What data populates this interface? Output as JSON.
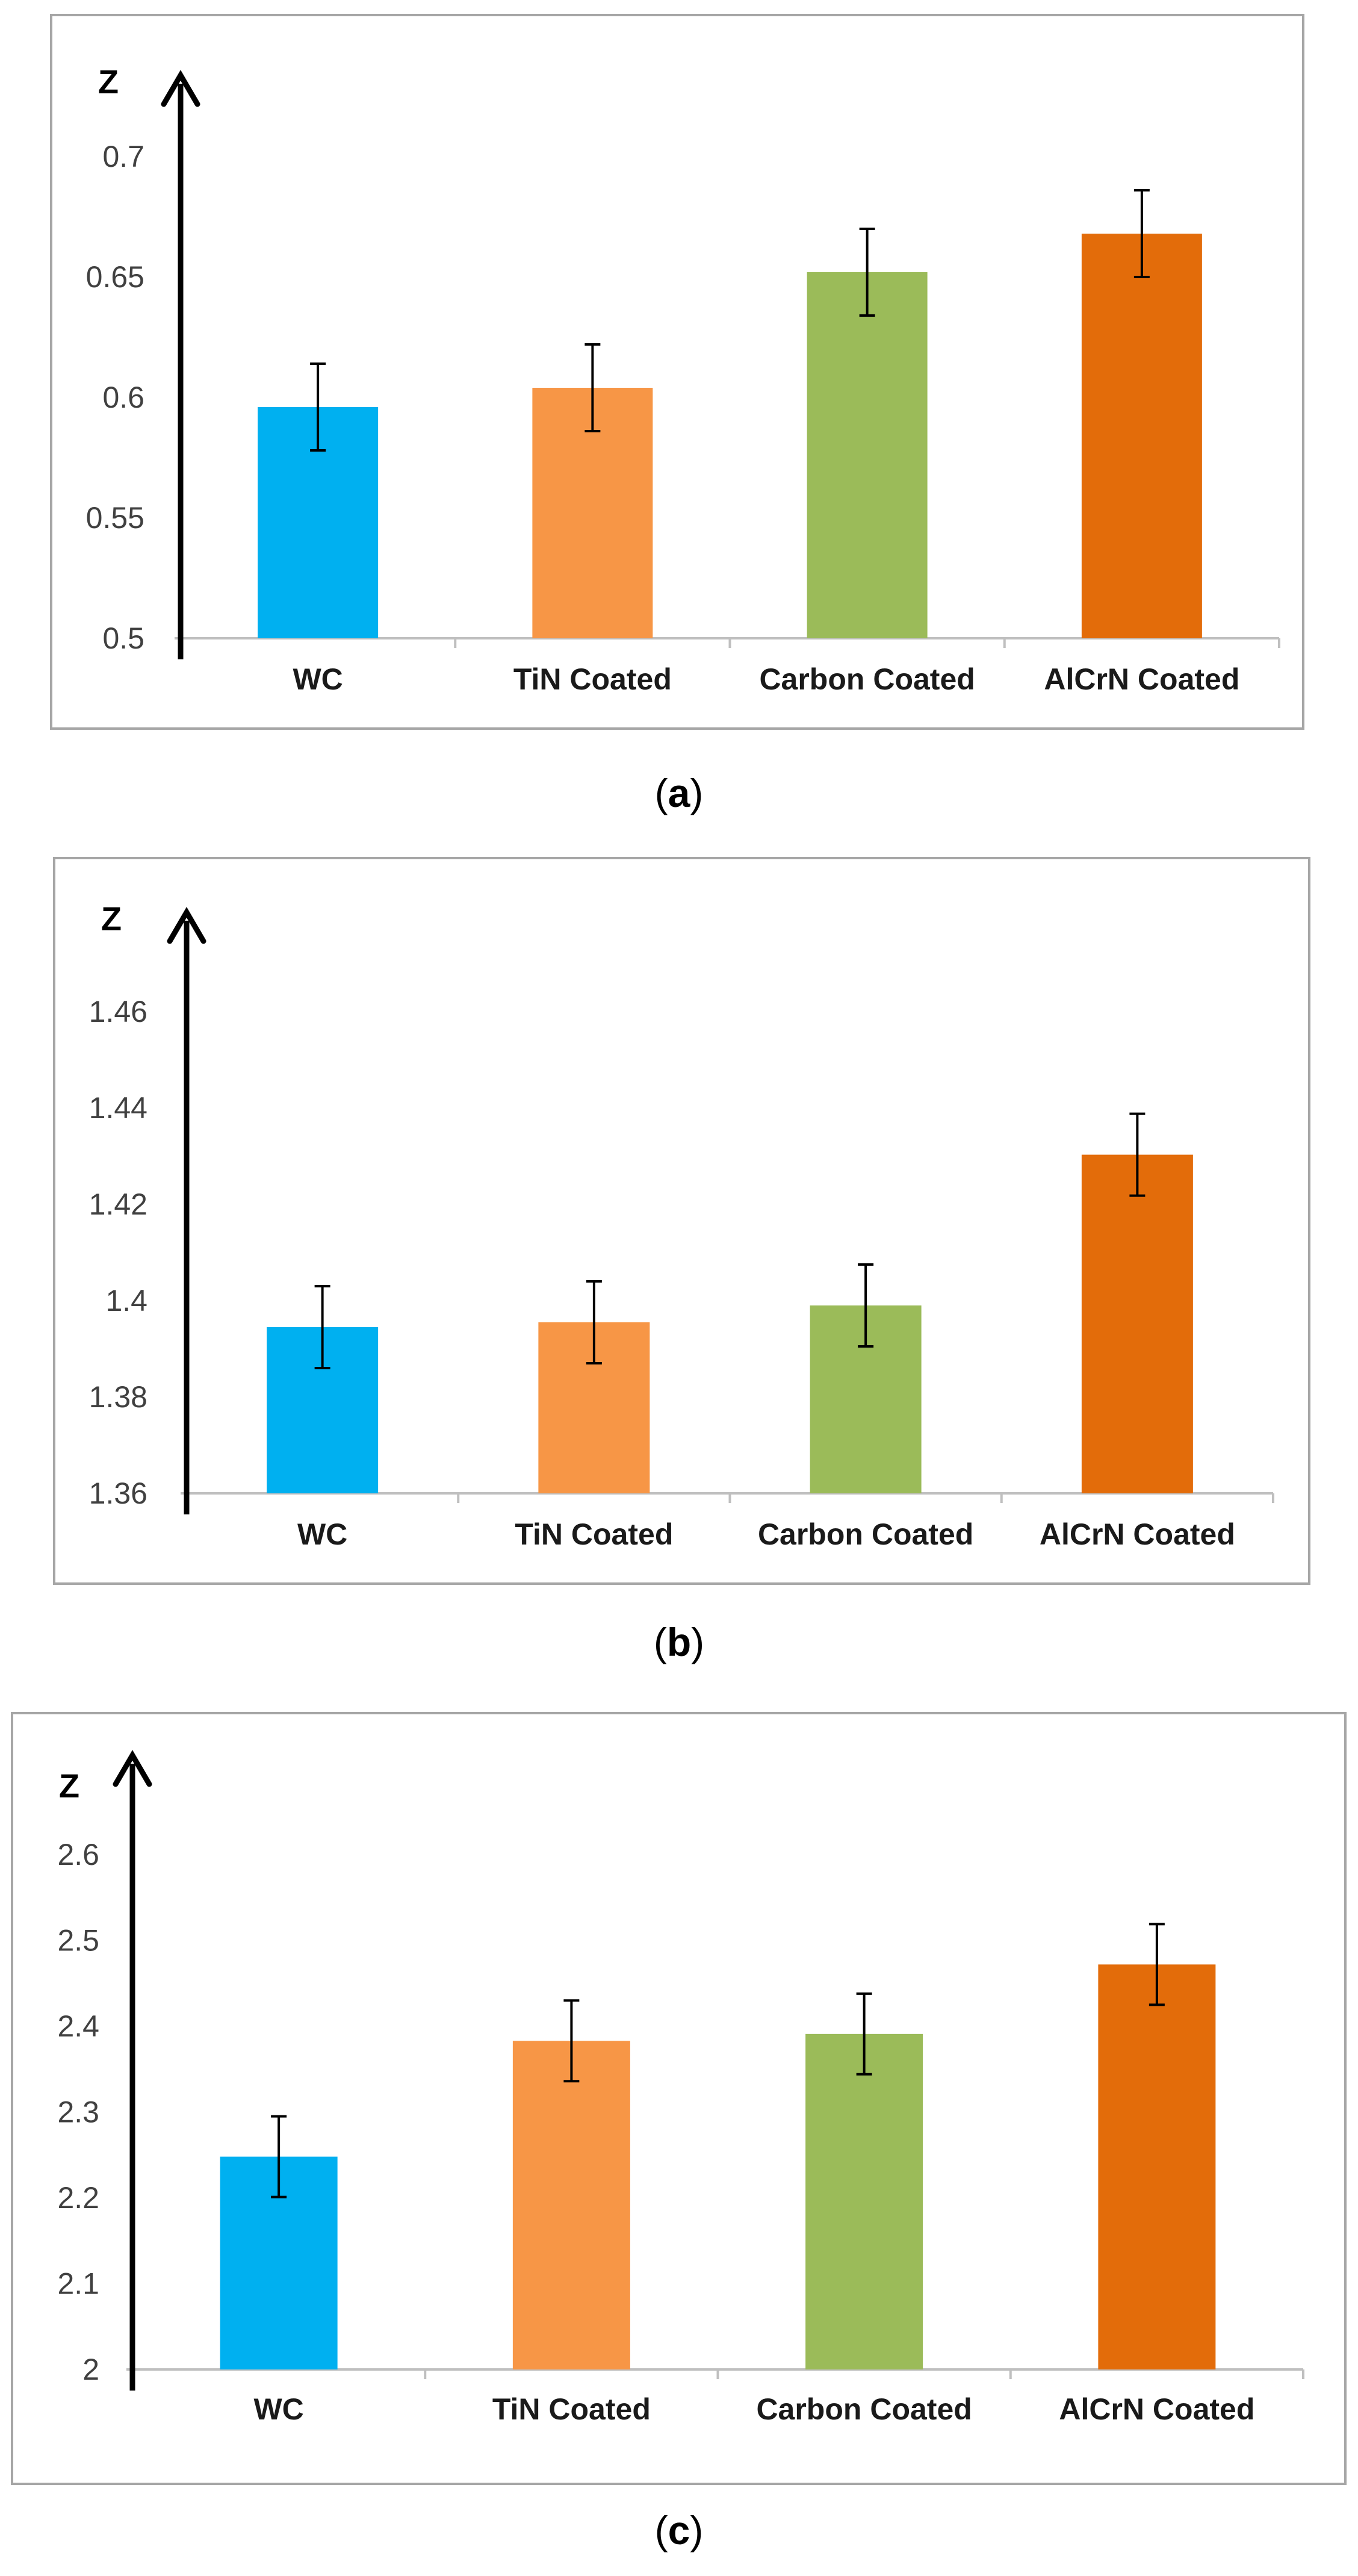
{
  "chart_data": [
    {
      "type": "bar",
      "panel_label": "(a)",
      "panel_letter": "a",
      "ylabel": "Z",
      "categories": [
        "WC",
        "TiN Coated",
        "Carbon Coated",
        "AlCrN Coated"
      ],
      "values": [
        0.596,
        0.604,
        0.652,
        0.668
      ],
      "errors": [
        0.018,
        0.018,
        0.018,
        0.018
      ],
      "colors": [
        "#00B0F0",
        "#F79646",
        "#9BBB59",
        "#E36C0A"
      ],
      "ylim": [
        0.5,
        0.7
      ],
      "yticks": [
        "0.5",
        "0.55",
        "0.6",
        "0.65",
        "0.7"
      ],
      "grid": false,
      "legend": "none"
    },
    {
      "type": "bar",
      "panel_label": "(b)",
      "panel_letter": "b",
      "ylabel": "Z",
      "categories": [
        "WC",
        "TiN Coated",
        "Carbon Coated",
        "AlCrN Coated"
      ],
      "values": [
        1.3945,
        1.3955,
        1.399,
        1.4303
      ],
      "errors": [
        0.0085,
        0.0085,
        0.0085,
        0.0085
      ],
      "colors": [
        "#00B0F0",
        "#F79646",
        "#9BBB59",
        "#E36C0A"
      ],
      "ylim": [
        1.36,
        1.46
      ],
      "yticks": [
        "1.36",
        "1.38",
        "1.4",
        "1.42",
        "1.44",
        "1.46"
      ],
      "grid": false,
      "legend": "none"
    },
    {
      "type": "bar",
      "panel_label": "(c)",
      "panel_letter": "c",
      "ylabel": "Z",
      "categories": [
        "WC",
        "TiN Coated",
        "Carbon Coated",
        "AlCrN Coated"
      ],
      "values": [
        2.248,
        2.383,
        2.391,
        2.472
      ],
      "errors": [
        0.047,
        0.047,
        0.047,
        0.047
      ],
      "colors": [
        "#00B0F0",
        "#F79646",
        "#9BBB59",
        "#E36C0A"
      ],
      "ylim": [
        2.0,
        2.6
      ],
      "yticks": [
        "2",
        "2.1",
        "2.2",
        "2.3",
        "2.4",
        "2.5",
        "2.6"
      ],
      "grid": false,
      "legend": "none"
    }
  ]
}
